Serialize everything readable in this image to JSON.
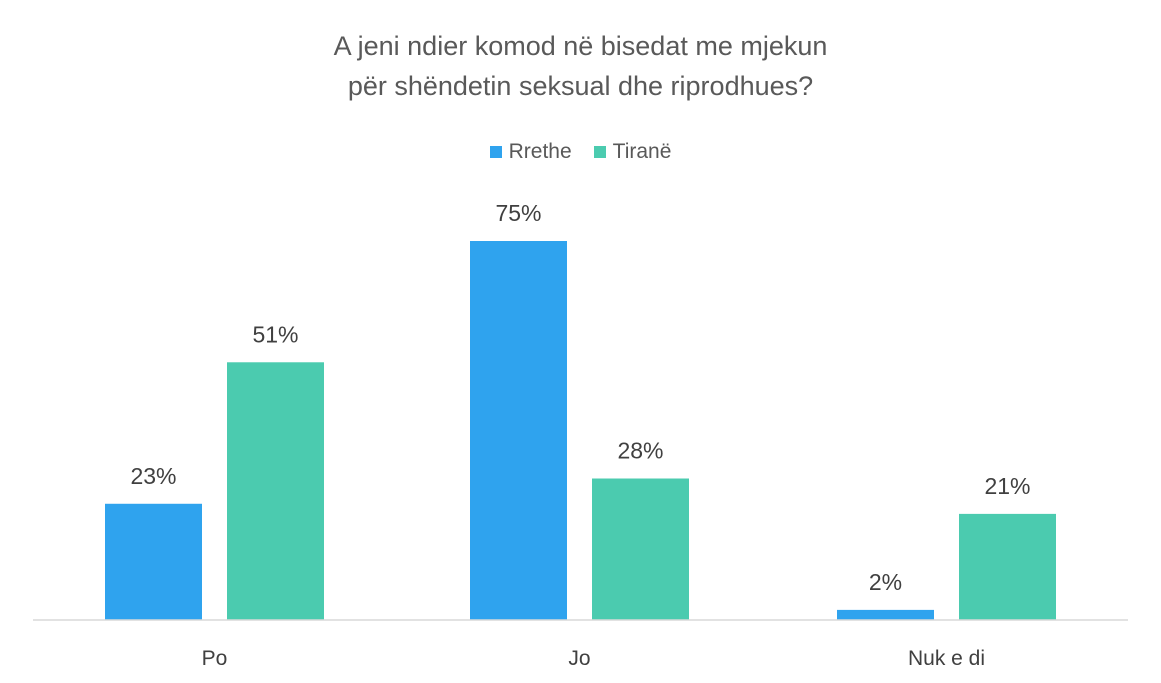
{
  "chart_data": {
    "type": "bar",
    "title_lines": [
      "A jeni ndier komod në bisedat me mjekun",
      "për shëndetin seksual dhe riprodhues?"
    ],
    "categories": [
      "Po",
      "Jo",
      "Nuk e di"
    ],
    "series": [
      {
        "name": "Rrethe",
        "color": "#2FA3EE",
        "values": [
          23,
          75,
          2
        ],
        "labels": [
          "23%",
          "75%",
          "2%"
        ]
      },
      {
        "name": "Tiranë",
        "color": "#4BCBAF",
        "values": [
          51,
          28,
          21
        ],
        "labels": [
          "51%",
          "28%",
          "21%"
        ]
      }
    ],
    "xlabel": "",
    "ylabel": "",
    "ylim": [
      0,
      75
    ],
    "legend_position": "top-center",
    "grid": false
  }
}
